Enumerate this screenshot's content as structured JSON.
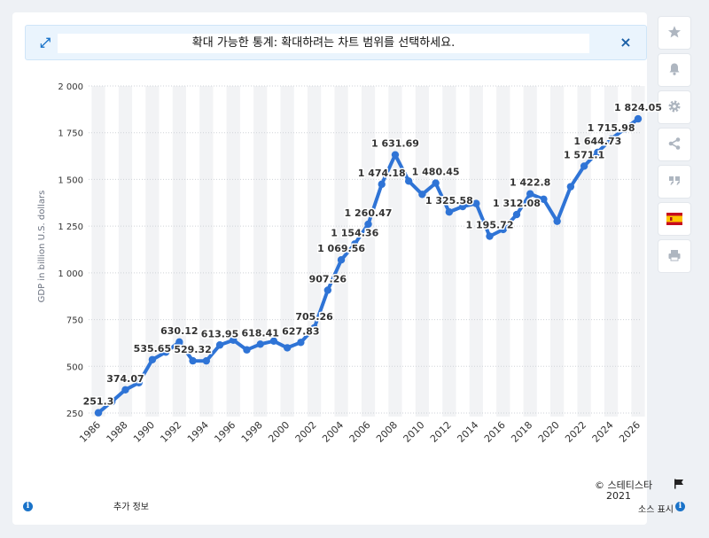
{
  "zoom_bar": {
    "message": "확대 가능한 통계: 확대하려는 차트 범위를 선택하세요.",
    "close_label": "×"
  },
  "side_toolbar": {
    "icons": [
      "star-icon",
      "bell-icon",
      "gear-icon",
      "share-icon",
      "quote-icon",
      "spain-flag-icon",
      "print-icon"
    ]
  },
  "footer": {
    "more_info": "추가 정보",
    "copyright_line1": "© 스테티스타",
    "copyright_line2": "2021",
    "show_source": "소스 표시"
  },
  "colors": {
    "line": "#2f74d6",
    "band": "#f2f3f5",
    "grid": "#cfd3d8",
    "accent": "#1a73c9"
  },
  "chart_data": {
    "type": "line",
    "ylabel": "GDP in billion U.S. dollars",
    "xlabel": "",
    "ylim": [
      250,
      2000
    ],
    "yticks": [
      250,
      500,
      750,
      1000,
      1250,
      1500,
      1750,
      2000
    ],
    "ytick_labels": [
      "250",
      "500",
      "750",
      "1 000",
      "1 250",
      "1 500",
      "1 750",
      "2 000"
    ],
    "x_tick_labels": [
      "1986",
      "1988",
      "1990",
      "1992",
      "1994",
      "1996",
      "1998",
      "2000",
      "2002",
      "2004",
      "2006",
      "2008",
      "2010",
      "2012",
      "2014",
      "2016",
      "2018",
      "2020",
      "2022",
      "2024",
      "2026"
    ],
    "grid": true,
    "series": [
      {
        "x": [
          1986,
          1987,
          1988,
          1989,
          1990,
          1991,
          1992,
          1993,
          1994,
          1995,
          1996,
          1997,
          1998,
          1999,
          2000,
          2001,
          2002,
          2003,
          2004,
          2005,
          2006,
          2007,
          2008,
          2009,
          2010,
          2011,
          2012,
          2013,
          2014,
          2015,
          2016,
          2017,
          2018,
          2019,
          2020,
          2021,
          2022,
          2023,
          2024,
          2025,
          2026
        ],
        "values": [
          251.3,
          311.0,
          374.07,
          412.0,
          535.65,
          576.0,
          630.12,
          529.32,
          529.0,
          613.95,
          640.0,
          588.0,
          618.41,
          635.0,
          599.0,
          627.83,
          705.26,
          907.26,
          1069.56,
          1154.36,
          1260.47,
          1474.18,
          1631.69,
          1491.0,
          1420.0,
          1480.45,
          1325.58,
          1355.0,
          1371.0,
          1195.72,
          1232.0,
          1312.08,
          1422.8,
          1394.0,
          1276.0,
          1461.0,
          1571.1,
          1644.73,
          1715.98,
          1770.0,
          1824.05
        ]
      }
    ],
    "data_labels": [
      {
        "x": 1986,
        "y": 251.3,
        "text": "251.3"
      },
      {
        "x": 1988,
        "y": 374.07,
        "text": "374.07"
      },
      {
        "x": 1990,
        "y": 535.65,
        "text": "535.65"
      },
      {
        "x": 1992,
        "y": 630.12,
        "text": "630.12"
      },
      {
        "x": 1993,
        "y": 529.32,
        "text": "529.32"
      },
      {
        "x": 1995,
        "y": 613.95,
        "text": "613.95"
      },
      {
        "x": 1998,
        "y": 618.41,
        "text": "618.41"
      },
      {
        "x": 2001,
        "y": 627.83,
        "text": "627.83"
      },
      {
        "x": 2002,
        "y": 705.26,
        "text": "705.26"
      },
      {
        "x": 2003,
        "y": 907.26,
        "text": "907.26"
      },
      {
        "x": 2004,
        "y": 1069.56,
        "text": "1 069.56"
      },
      {
        "x": 2005,
        "y": 1154.36,
        "text": "1 154.36"
      },
      {
        "x": 2006,
        "y": 1260.47,
        "text": "1 260.47"
      },
      {
        "x": 2007,
        "y": 1474.18,
        "text": "1 474.18"
      },
      {
        "x": 2008,
        "y": 1631.69,
        "text": "1 631.69"
      },
      {
        "x": 2011,
        "y": 1480.45,
        "text": "1 480.45"
      },
      {
        "x": 2012,
        "y": 1325.58,
        "text": "1 325.58"
      },
      {
        "x": 2015,
        "y": 1195.72,
        "text": "1 195.72"
      },
      {
        "x": 2017,
        "y": 1312.08,
        "text": "1 312.08"
      },
      {
        "x": 2018,
        "y": 1422.8,
        "text": "1 422.8"
      },
      {
        "x": 2022,
        "y": 1571.1,
        "text": "1 571.1"
      },
      {
        "x": 2023,
        "y": 1644.73,
        "text": "1 644.73"
      },
      {
        "x": 2024,
        "y": 1715.98,
        "text": "1 715.98"
      },
      {
        "x": 2026,
        "y": 1824.05,
        "text": "1 824.05"
      }
    ]
  }
}
